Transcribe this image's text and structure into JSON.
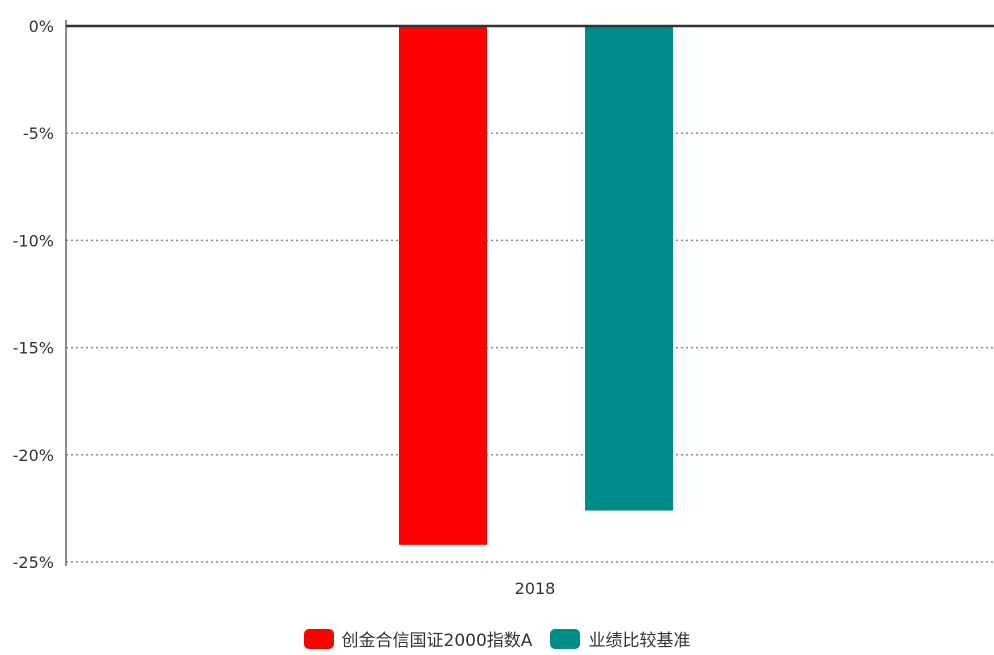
{
  "chart_data": {
    "type": "bar",
    "categories": [
      "2018"
    ],
    "series": [
      {
        "name": "创金合信国证2000指数A",
        "values": [
          -24.2
        ],
        "color": "#ff0000"
      },
      {
        "name": "业绩比较基准",
        "values": [
          -22.6
        ],
        "color": "#008b8b"
      }
    ],
    "yticks": [
      "0%",
      "-5%",
      "-10%",
      "-15%",
      "-20%",
      "-25%"
    ],
    "ytick_values": [
      0,
      -5,
      -10,
      -15,
      -20,
      -25
    ],
    "ylim": [
      -25,
      0
    ],
    "grid": true,
    "legend_position": "bottom",
    "title": "",
    "xlabel": "",
    "ylabel": ""
  }
}
